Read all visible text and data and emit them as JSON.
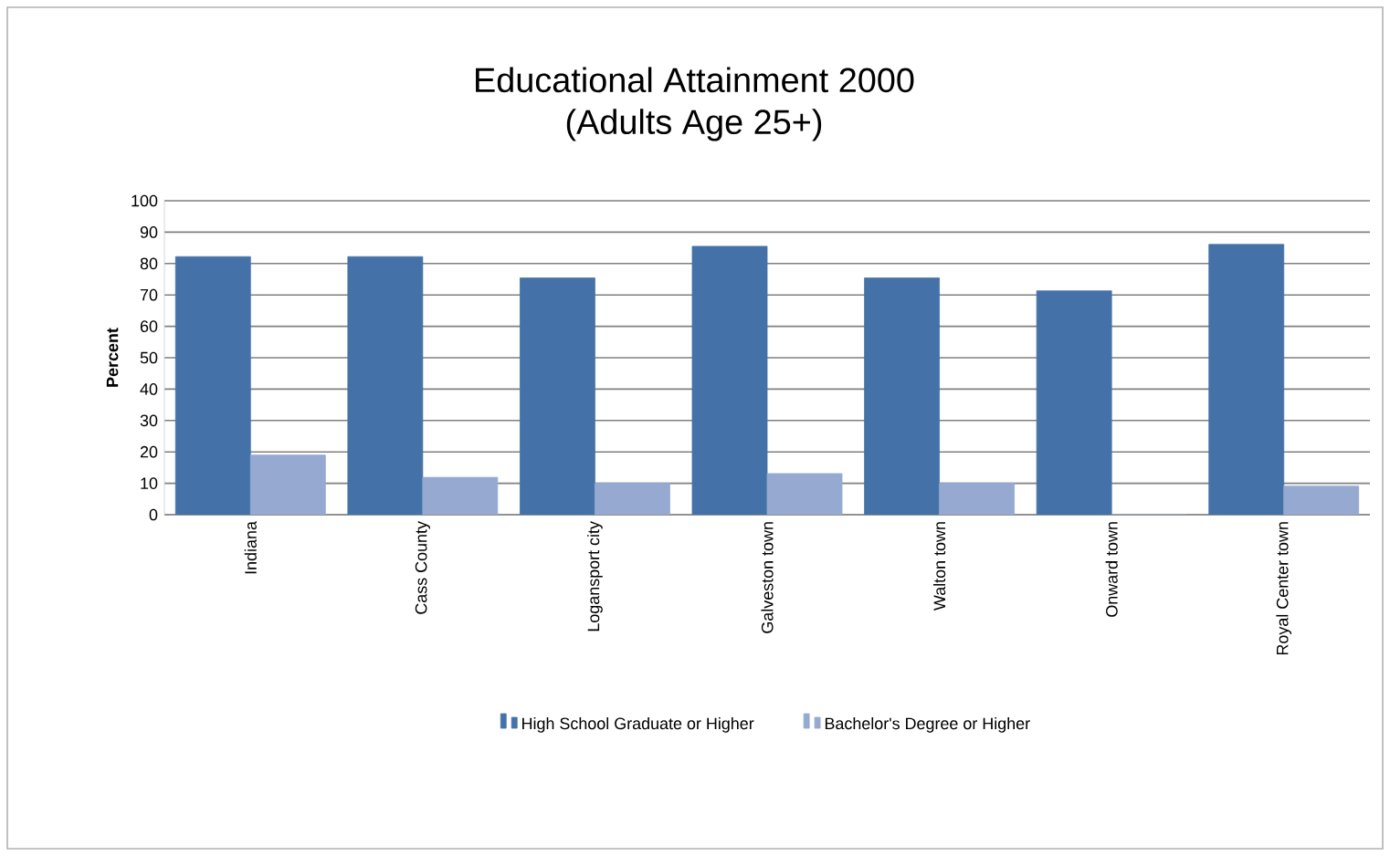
{
  "chart_data": {
    "type": "bar",
    "title": "Educational Attainment 2000\n(Adults Age 25+)",
    "ylabel": "Percent",
    "categories": [
      "Indiana",
      "Cass County",
      "Logansport city",
      "Galveston town",
      "Walton town",
      "Onward town",
      "Royal Center town"
    ],
    "series": [
      {
        "name": "High School Graduate or Higher",
        "color": "#4472a8",
        "values": [
          82.2,
          82.2,
          75.4,
          85.5,
          75.4,
          71.3,
          86.1
        ]
      },
      {
        "name": "Bachelor's Degree or Higher",
        "color": "#95a9d1",
        "values": [
          19.0,
          11.9,
          10.1,
          13.1,
          10.1,
          0,
          9.1
        ]
      }
    ],
    "ylim": [
      0,
      100
    ],
    "yticks": [
      0,
      10,
      20,
      30,
      40,
      50,
      60,
      70,
      80,
      90,
      100
    ],
    "grid": "y",
    "legend": "bottom"
  }
}
